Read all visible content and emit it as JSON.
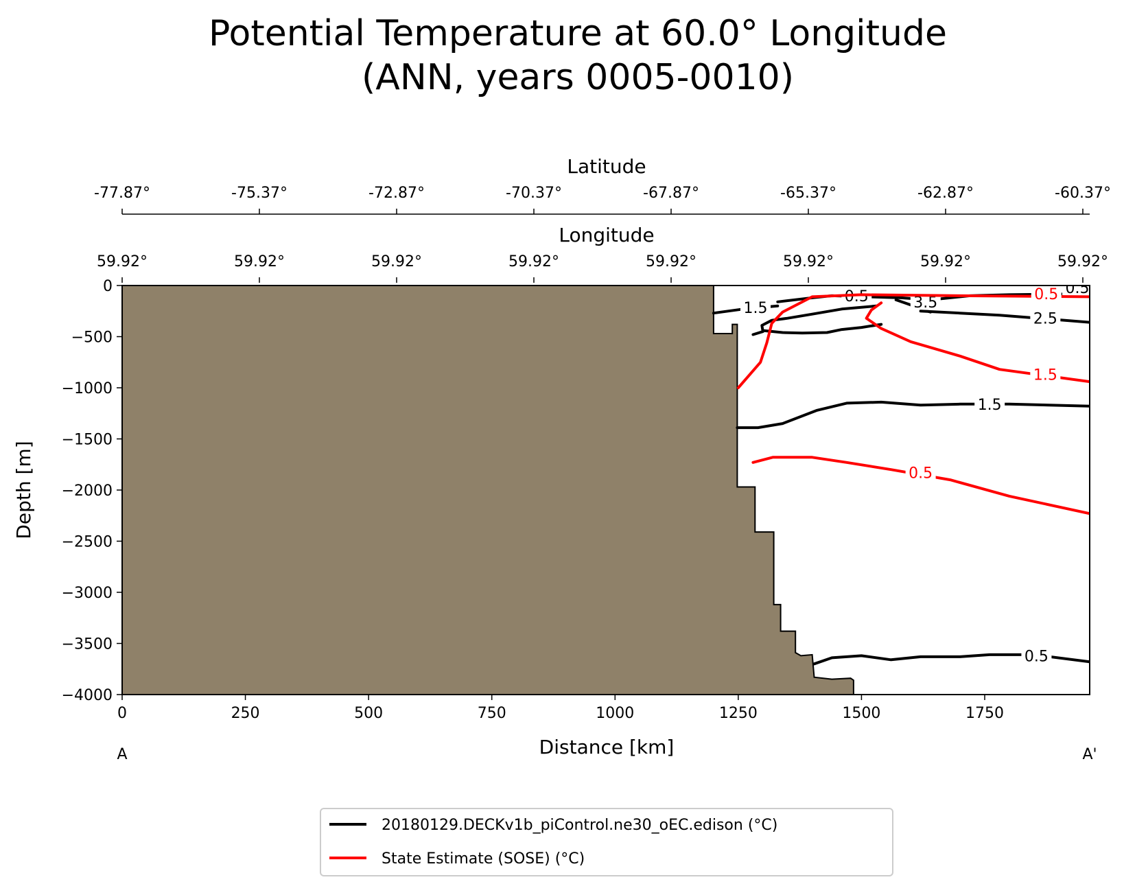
{
  "chart_data": {
    "type": "contour",
    "title": {
      "line1": "Potential Temperature at 60.0° Longitude",
      "line2": "(ANN, years 0005-0010)"
    },
    "xlabel": "Distance [km]",
    "ylabel": "Depth [m]",
    "xlim": [
      0,
      1963
    ],
    "ylim": [
      -4000,
      0
    ],
    "x_ticks": [
      "0",
      "250",
      "500",
      "750",
      "1000",
      "1250",
      "1500",
      "1750"
    ],
    "y_ticks": [
      "0",
      "−500",
      "−1000",
      "−1500",
      "−2000",
      "−2500",
      "−3000",
      "−3500",
      "−4000"
    ],
    "longitude_axis": {
      "label": "Longitude",
      "ticks": [
        "59.92°",
        "59.92°",
        "59.92°",
        "59.92°",
        "59.92°",
        "59.92°",
        "59.92°",
        "59.92°"
      ]
    },
    "latitude_axis": {
      "label": "Latitude",
      "ticks": [
        "-77.87°",
        "-75.37°",
        "-72.87°",
        "-70.37°",
        "-67.87°",
        "-65.37°",
        "-62.87°",
        "-60.37°"
      ]
    },
    "section_endpoints": {
      "start": "A",
      "end": "A'"
    },
    "colors": {
      "model": "#000000",
      "obs": "#ff0000",
      "land": "#8f8169"
    },
    "land_mask": [
      [
        0,
        0
      ],
      [
        1200,
        0
      ],
      [
        1200,
        -470
      ],
      [
        1238,
        -470
      ],
      [
        1238,
        -380
      ],
      [
        1248,
        -380
      ],
      [
        1248,
        -1970
      ],
      [
        1284,
        -1970
      ],
      [
        1284,
        -2410
      ],
      [
        1322,
        -2410
      ],
      [
        1322,
        -3120
      ],
      [
        1336,
        -3120
      ],
      [
        1336,
        -3380
      ],
      [
        1366,
        -3380
      ],
      [
        1366,
        -3590
      ],
      [
        1377,
        -3620
      ],
      [
        1400,
        -3610
      ],
      [
        1404,
        -3830
      ],
      [
        1440,
        -3850
      ],
      [
        1478,
        -3840
      ],
      [
        1484,
        -3860
      ],
      [
        1484,
        -4000
      ],
      [
        0,
        -4000
      ]
    ],
    "series": [
      {
        "name": "20180129.DECKv1b_piControl.ne30_oEC.edison (°C)",
        "contours": [
          {
            "level": "1.5",
            "points": [
              [
                1200,
                -270
              ],
              [
                1260,
                -230
              ],
              [
                1330,
                -200
              ]
            ],
            "label_at": [
              1285,
              -215
            ]
          },
          {
            "level": "0.5",
            "points": [
              [
                1330,
                -160
              ],
              [
                1400,
                -120
              ],
              [
                1440,
                -100
              ],
              [
                1580,
                -120
              ],
              [
                1640,
                -140
              ],
              [
                1720,
                -100
              ],
              [
                1800,
                -90
              ],
              [
                1963,
                -80
              ]
            ],
            "label_at": [
              1490,
              -100
            ]
          },
          {
            "level": "0.5",
            "points": [
              [
                1280,
                -480
              ],
              [
                1300,
                -450
              ],
              [
                1298,
                -390
              ],
              [
                1318,
                -340
              ],
              [
                1350,
                -320
              ],
              [
                1400,
                -280
              ],
              [
                1460,
                -230
              ],
              [
                1530,
                -200
              ]
            ],
            "label_at": null
          },
          {
            "level": "0.5",
            "points": [
              [
                1300,
                -440
              ],
              [
                1340,
                -460
              ],
              [
                1380,
                -465
              ],
              [
                1430,
                -460
              ],
              [
                1460,
                -430
              ],
              [
                1500,
                -410
              ],
              [
                1540,
                -380
              ]
            ],
            "label_at": null
          },
          {
            "level": "3.5",
            "points": [
              [
                1570,
                -140
              ],
              [
                1600,
                -190
              ],
              [
                1620,
                -230
              ],
              [
                1640,
                -260
              ]
            ],
            "label_at": [
              1630,
              -160
            ]
          },
          {
            "level": "2.5",
            "points": [
              [
                1620,
                -250
              ],
              [
                1700,
                -270
              ],
              [
                1780,
                -290
              ],
              [
                1860,
                -320
              ],
              [
                1963,
                -360
              ]
            ],
            "label_at": [
              1873,
              -320
            ]
          },
          {
            "level": "0.5",
            "points": [
              [
                1920,
                -60
              ],
              [
                1963,
                -20
              ]
            ],
            "label_at": [
              1938,
              -20
            ]
          },
          {
            "level": "1.5",
            "points": [
              [
                1248,
                -1390
              ],
              [
                1290,
                -1390
              ],
              [
                1340,
                -1350
              ],
              [
                1410,
                -1220
              ],
              [
                1470,
                -1150
              ],
              [
                1540,
                -1140
              ],
              [
                1620,
                -1170
              ],
              [
                1700,
                -1160
              ],
              [
                1800,
                -1160
              ],
              [
                1963,
                -1180
              ]
            ],
            "label_at": [
              1760,
              -1160
            ]
          },
          {
            "level": "0.5",
            "points": [
              [
                1404,
                -3700
              ],
              [
                1440,
                -3640
              ],
              [
                1500,
                -3620
              ],
              [
                1560,
                -3660
              ],
              [
                1620,
                -3630
              ],
              [
                1700,
                -3630
              ],
              [
                1760,
                -3610
              ],
              [
                1850,
                -3610
              ],
              [
                1963,
                -3680
              ]
            ],
            "label_at": [
              1855,
              -3620
            ]
          }
        ]
      },
      {
        "name": "State Estimate (SOSE) (°C)",
        "contours": [
          {
            "level": "0.5",
            "points": [
              [
                1250,
                -1000
              ],
              [
                1270,
                -890
              ],
              [
                1295,
                -750
              ],
              [
                1308,
                -560
              ],
              [
                1318,
                -370
              ],
              [
                1340,
                -260
              ],
              [
                1400,
                -110
              ],
              [
                1500,
                -90
              ],
              [
                1700,
                -100
              ],
              [
                1963,
                -110
              ]
            ],
            "label_at": [
              1875,
              -80
            ]
          },
          {
            "level": "1.5",
            "points": [
              [
                1540,
                -170
              ],
              [
                1520,
                -240
              ],
              [
                1510,
                -320
              ],
              [
                1540,
                -420
              ],
              [
                1600,
                -550
              ],
              [
                1700,
                -690
              ],
              [
                1780,
                -820
              ],
              [
                1963,
                -940
              ]
            ],
            "label_at": [
              1873,
              -870
            ]
          },
          {
            "level": "0.5",
            "points": [
              [
                1280,
                -1730
              ],
              [
                1320,
                -1680
              ],
              [
                1400,
                -1680
              ],
              [
                1470,
                -1730
              ],
              [
                1560,
                -1800
              ],
              [
                1680,
                -1900
              ],
              [
                1800,
                -2060
              ],
              [
                1963,
                -2230
              ]
            ],
            "label_at": [
              1620,
              -1830
            ]
          }
        ]
      }
    ],
    "legend": {
      "position": "bottom-center"
    }
  }
}
